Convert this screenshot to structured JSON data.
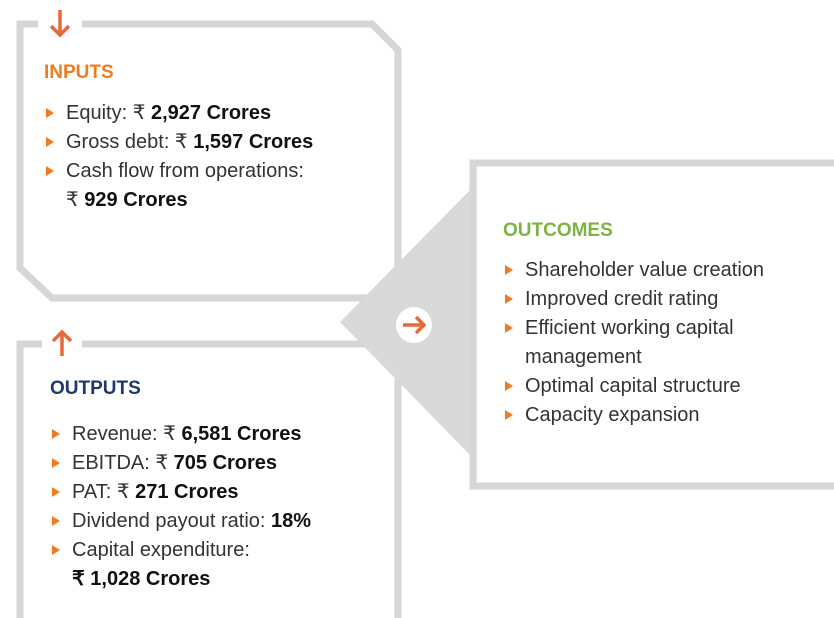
{
  "inputs": {
    "title": "INPUTS",
    "items": [
      {
        "text": "Equity: ₹ ",
        "bold": "2,927 Crores"
      },
      {
        "text": "Gross debt: ₹ ",
        "bold": "1,597 Crores"
      },
      {
        "text": "Cash flow from operations: ₹ ",
        "bold": "929 Crores"
      }
    ]
  },
  "outputs": {
    "title": "OUTPUTS",
    "items": [
      {
        "text": "Revenue: ₹ ",
        "bold": "6,581 Crores"
      },
      {
        "text": "EBITDA: ₹ ",
        "bold": "705 Crores"
      },
      {
        "text": "PAT: ₹ ",
        "bold": "271 Crores"
      },
      {
        "text": "Dividend payout ratio: ",
        "bold": "18%"
      },
      {
        "text": "Capital expenditure: ",
        "bold": "₹ 1,028 Crores"
      }
    ]
  },
  "outcomes": {
    "title": "OUTCOMES",
    "items": [
      "Shareholder value creation",
      "Improved credit rating",
      "Efficient working capital management",
      "Optimal capital structure",
      "Capacity expansion"
    ]
  }
}
